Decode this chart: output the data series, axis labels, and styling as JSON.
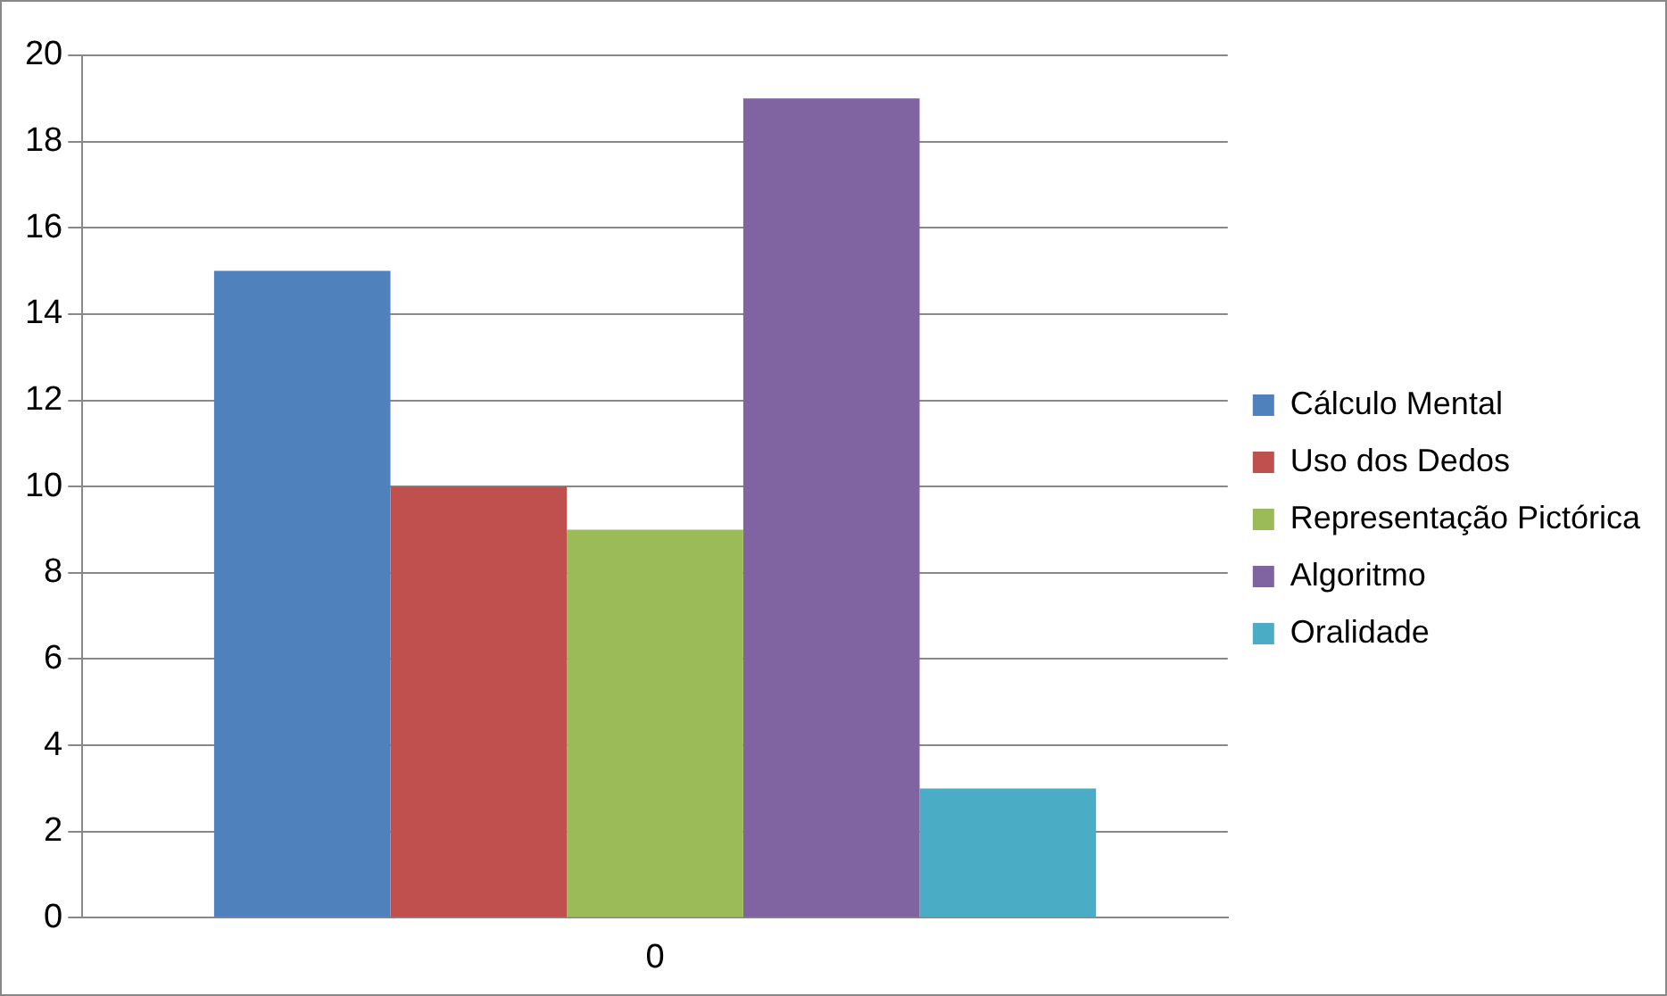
{
  "chart_data": {
    "type": "bar",
    "categories": [
      "0"
    ],
    "series": [
      {
        "name": "Cálculo Mental",
        "color": "#4f81bd",
        "values": [
          15
        ]
      },
      {
        "name": "Uso dos Dedos",
        "color": "#c0504d",
        "values": [
          10
        ]
      },
      {
        "name": "Representação Pictórica",
        "color": "#9bbb59",
        "values": [
          9
        ]
      },
      {
        "name": "Algoritmo",
        "color": "#8064a2",
        "values": [
          19
        ]
      },
      {
        "name": "Oralidade",
        "color": "#4bacc6",
        "values": [
          3
        ]
      }
    ],
    "ylim": [
      0,
      20
    ],
    "yticks": [
      0,
      2,
      4,
      6,
      8,
      10,
      12,
      14,
      16,
      18,
      20
    ],
    "grid": "y",
    "legend": "right"
  }
}
